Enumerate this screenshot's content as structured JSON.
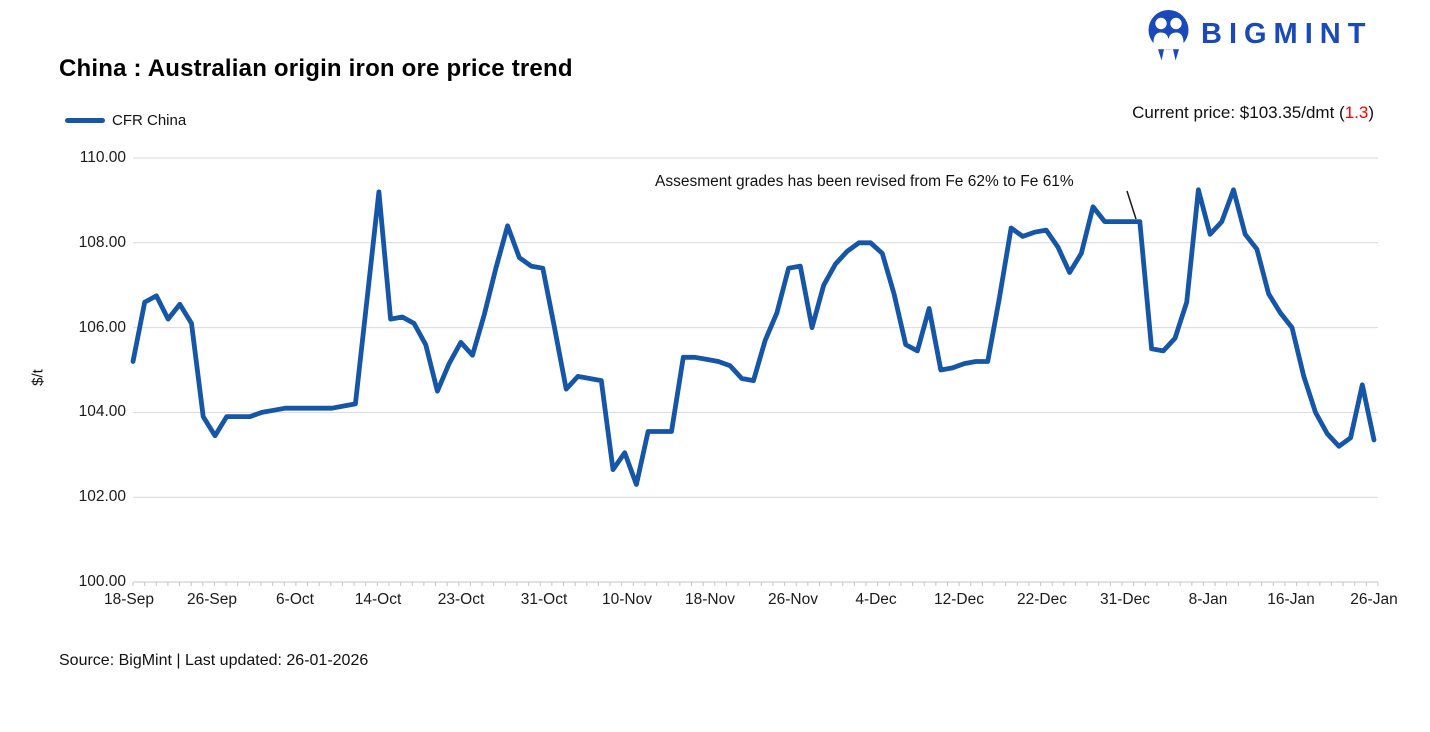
{
  "logo": {
    "text": "BIGMINT",
    "color": "#1A49BB"
  },
  "header": {
    "title": "China : Australian origin iron ore price trend"
  },
  "legend": {
    "label": "CFR China"
  },
  "current_price": {
    "before": "Current price: $103.35/dmt (",
    "change": "1.3",
    "after": ")",
    "change_color": "#FF0000"
  },
  "annotation": {
    "text": "Assesment grades has been revised from Fe 62% to Fe 61%"
  },
  "footer": {
    "source": "Source: BigMint | Last updated: 26-01-2026"
  },
  "chart_data": {
    "type": "line",
    "title": "China : Australian origin iron ore price trend",
    "ylabel": "$/t",
    "ylim": [
      100,
      110
    ],
    "y_ticks": [
      100,
      102,
      104,
      106,
      108,
      110
    ],
    "x_tick_labels": [
      "18-Sep",
      "26-Sep",
      "6-Oct",
      "14-Oct",
      "23-Oct",
      "31-Oct",
      "10-Nov",
      "18-Nov",
      "26-Nov",
      "4-Dec",
      "12-Dec",
      "22-Dec",
      "31-Dec",
      "8-Jan",
      "16-Jan",
      "26-Jan"
    ],
    "grid": "horizontal",
    "legend_position": "top-left",
    "annotation": "Assesment grades has been revised from Fe 62% to Fe 61%",
    "current_price_label": "$103.35/dmt",
    "latest_change": "1.3",
    "series": [
      {
        "name": "CFR China",
        "color": "#1556A8",
        "values": [
          105.2,
          106.6,
          106.75,
          106.2,
          106.55,
          106.1,
          103.9,
          103.45,
          103.9,
          103.9,
          103.9,
          104.0,
          104.05,
          104.1,
          104.1,
          104.1,
          104.1,
          104.1,
          104.15,
          104.2,
          106.7,
          109.2,
          106.2,
          106.25,
          106.1,
          105.6,
          104.5,
          105.15,
          105.65,
          105.35,
          106.3,
          107.4,
          108.4,
          107.65,
          107.45,
          107.4,
          106.0,
          104.55,
          104.85,
          104.8,
          104.75,
          102.65,
          103.05,
          102.3,
          103.55,
          103.55,
          103.55,
          105.3,
          105.3,
          105.25,
          105.2,
          105.1,
          104.8,
          104.75,
          105.7,
          106.35,
          107.4,
          107.45,
          106.0,
          107.0,
          107.5,
          107.8,
          108.0,
          108.0,
          107.75,
          106.8,
          105.6,
          105.45,
          106.45,
          105.0,
          105.05,
          105.15,
          105.2,
          105.2,
          106.7,
          108.35,
          108.15,
          108.25,
          108.3,
          107.9,
          107.3,
          107.75,
          108.85,
          108.5,
          108.5,
          108.5,
          108.5,
          105.5,
          105.45,
          105.75,
          106.6,
          109.25,
          108.2,
          108.5,
          109.25,
          108.2,
          107.85,
          106.8,
          106.35,
          106.0,
          104.85,
          104.0,
          103.5,
          103.2,
          103.4,
          104.65,
          103.35
        ]
      }
    ]
  }
}
